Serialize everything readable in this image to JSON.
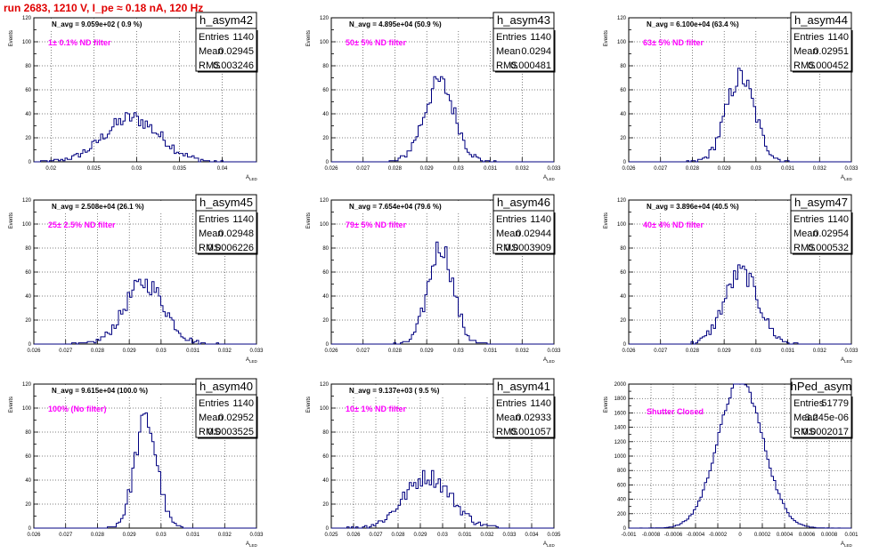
{
  "run_title": "run 2683,  1210 V, I_pe ≈ 0.18 nA, 120 Hz",
  "chart_data": [
    {
      "type": "bar",
      "id": "h_asym42",
      "stats": {
        "title": "h_asym42",
        "entries": "1140",
        "mean": "0.02945",
        "rms": "0.003246"
      },
      "navg": "N_avg = 9.059e+02 ( 0.9 %)",
      "filter": "1± 0.1% ND filter",
      "ylabel": "Events",
      "xlabel": "A_{LED}",
      "xlim": [
        0.018,
        0.044
      ],
      "ylim": [
        0,
        120
      ],
      "xticks": [
        0.02,
        0.025,
        0.03,
        0.035,
        0.04
      ],
      "xtick_labels": [
        "0.02",
        "0.025",
        "0.03",
        "0.035",
        "0.04"
      ],
      "yticks": [
        0,
        10,
        20,
        30,
        40,
        50,
        60,
        70,
        80,
        90,
        100,
        110,
        120
      ],
      "ytick_labels": [
        "0",
        "",
        "20",
        "",
        "40",
        "",
        "60",
        "",
        "80",
        "",
        "100",
        "",
        "120"
      ],
      "mean_val": 0.02945,
      "sigma": 0.003246,
      "entries": 1140,
      "nbins": 100
    },
    {
      "type": "bar",
      "id": "h_asym43",
      "stats": {
        "title": "h_asym43",
        "entries": "1140",
        "mean": "0.0294",
        "rms": "0.000481"
      },
      "navg": "N_avg = 4.895e+04 (50.9 %)",
      "filter": "50± 5% ND filter",
      "ylabel": "Events",
      "xlabel": "A_{LED}",
      "xlim": [
        0.026,
        0.033
      ],
      "ylim": [
        0,
        120
      ],
      "xticks": [
        0.026,
        0.027,
        0.028,
        0.029,
        0.03,
        0.031,
        0.032,
        0.033
      ],
      "xtick_labels": [
        "0.026",
        "0.027",
        "0.028",
        "0.029",
        "0.03",
        "0.031",
        "0.032",
        "0.033"
      ],
      "yticks": [
        0,
        10,
        20,
        30,
        40,
        50,
        60,
        70,
        80,
        90,
        100,
        110,
        120
      ],
      "ytick_labels": [
        "0",
        "",
        "20",
        "",
        "40",
        "",
        "60",
        "",
        "80",
        "",
        "100",
        "",
        "120"
      ],
      "mean_val": 0.0294,
      "sigma": 0.000481,
      "entries": 1140,
      "nbins": 100
    },
    {
      "type": "bar",
      "id": "h_asym44",
      "stats": {
        "title": "h_asym44",
        "entries": "1140",
        "mean": "0.02951",
        "rms": "0.000452"
      },
      "navg": "N_avg = 6.100e+04 (63.4 %)",
      "filter": "63± 5% ND filter",
      "ylabel": "Events",
      "xlabel": "A_{LED}",
      "xlim": [
        0.026,
        0.033
      ],
      "ylim": [
        0,
        120
      ],
      "xticks": [
        0.026,
        0.027,
        0.028,
        0.029,
        0.03,
        0.031,
        0.032,
        0.033
      ],
      "xtick_labels": [
        "0.026",
        "0.027",
        "0.028",
        "0.029",
        "0.03",
        "0.031",
        "0.032",
        "0.033"
      ],
      "yticks": [
        0,
        10,
        20,
        30,
        40,
        50,
        60,
        70,
        80,
        90,
        100,
        110,
        120
      ],
      "ytick_labels": [
        "0",
        "",
        "20",
        "",
        "40",
        "",
        "60",
        "",
        "80",
        "",
        "100",
        "",
        "120"
      ],
      "mean_val": 0.02951,
      "sigma": 0.000452,
      "entries": 1140,
      "nbins": 100
    },
    {
      "type": "bar",
      "id": "h_asym45",
      "stats": {
        "title": "h_asym45",
        "entries": "1140",
        "mean": "0.02948",
        "rms": "0.0006226"
      },
      "navg": "N_avg = 2.508e+04 (26.1 %)",
      "filter": "25± 2.5% ND filter",
      "ylabel": "Events",
      "xlabel": "A_{LED}",
      "xlim": [
        0.026,
        0.033
      ],
      "ylim": [
        0,
        120
      ],
      "xticks": [
        0.026,
        0.027,
        0.028,
        0.029,
        0.03,
        0.031,
        0.032,
        0.033
      ],
      "xtick_labels": [
        "0.026",
        "0.027",
        "0.028",
        "0.029",
        "0.03",
        "0.031",
        "0.032",
        "0.033"
      ],
      "yticks": [
        0,
        10,
        20,
        30,
        40,
        50,
        60,
        70,
        80,
        90,
        100,
        110,
        120
      ],
      "ytick_labels": [
        "0",
        "",
        "20",
        "",
        "40",
        "",
        "60",
        "",
        "80",
        "",
        "100",
        "",
        "120"
      ],
      "mean_val": 0.02948,
      "sigma": 0.0006226,
      "entries": 1140,
      "nbins": 100
    },
    {
      "type": "bar",
      "id": "h_asym46",
      "stats": {
        "title": "h_asym46",
        "entries": "1140",
        "mean": "0.02944",
        "rms": "0.0003909"
      },
      "navg": "N_avg = 7.654e+04 (79.6 %)",
      "filter": "79± 5% ND filter",
      "ylabel": "Events",
      "xlabel": "A_{LED}",
      "xlim": [
        0.026,
        0.033
      ],
      "ylim": [
        0,
        120
      ],
      "xticks": [
        0.026,
        0.027,
        0.028,
        0.029,
        0.03,
        0.031,
        0.032,
        0.033
      ],
      "xtick_labels": [
        "0.026",
        "0.027",
        "0.028",
        "0.029",
        "0.03",
        "0.031",
        "0.032",
        "0.033"
      ],
      "yticks": [
        0,
        10,
        20,
        30,
        40,
        50,
        60,
        70,
        80,
        90,
        100,
        110,
        120
      ],
      "ytick_labels": [
        "0",
        "",
        "20",
        "",
        "40",
        "",
        "60",
        "",
        "80",
        "",
        "100",
        "",
        "120"
      ],
      "mean_val": 0.02944,
      "sigma": 0.0003909,
      "entries": 1140,
      "nbins": 100
    },
    {
      "type": "bar",
      "id": "h_asym47",
      "stats": {
        "title": "h_asym47",
        "entries": "1140",
        "mean": "0.02954",
        "rms": "0.000532"
      },
      "navg": "N_avg = 3.896e+04 (40.5 %)",
      "filter": "40± 4% ND filter",
      "ylabel": "Events",
      "xlabel": "A_{LED}",
      "xlim": [
        0.026,
        0.033
      ],
      "ylim": [
        0,
        120
      ],
      "xticks": [
        0.026,
        0.027,
        0.028,
        0.029,
        0.03,
        0.031,
        0.032,
        0.033
      ],
      "xtick_labels": [
        "0.026",
        "0.027",
        "0.028",
        "0.029",
        "0.03",
        "0.031",
        "0.032",
        "0.033"
      ],
      "yticks": [
        0,
        10,
        20,
        30,
        40,
        50,
        60,
        70,
        80,
        90,
        100,
        110,
        120
      ],
      "ytick_labels": [
        "0",
        "",
        "20",
        "",
        "40",
        "",
        "60",
        "",
        "80",
        "",
        "100",
        "",
        "120"
      ],
      "mean_val": 0.02954,
      "sigma": 0.000532,
      "entries": 1140,
      "nbins": 100
    },
    {
      "type": "bar",
      "id": "h_asym40",
      "stats": {
        "title": "h_asym40",
        "entries": "1140",
        "mean": "0.02952",
        "rms": "0.0003525"
      },
      "navg": "N_avg = 9.615e+04 (100.0 %)",
      "filter": "100% (No filter)",
      "ylabel": "Events",
      "xlabel": "A_{LED}",
      "xlim": [
        0.026,
        0.033
      ],
      "ylim": [
        0,
        120
      ],
      "xticks": [
        0.026,
        0.027,
        0.028,
        0.029,
        0.03,
        0.031,
        0.032,
        0.033
      ],
      "xtick_labels": [
        "0.026",
        "0.027",
        "0.028",
        "0.029",
        "0.03",
        "0.031",
        "0.032",
        "0.033"
      ],
      "yticks": [
        0,
        10,
        20,
        30,
        40,
        50,
        60,
        70,
        80,
        90,
        100,
        110,
        120
      ],
      "ytick_labels": [
        "0",
        "",
        "20",
        "",
        "40",
        "",
        "60",
        "",
        "80",
        "",
        "100",
        "",
        "120"
      ],
      "mean_val": 0.02952,
      "sigma": 0.0003525,
      "entries": 1140,
      "nbins": 100
    },
    {
      "type": "bar",
      "id": "h_asym41",
      "stats": {
        "title": "h_asym41",
        "entries": "1140",
        "mean": "0.02933",
        "rms": "0.001057"
      },
      "navg": "N_avg = 9.137e+03 ( 9.5 %)",
      "filter": "10± 1% ND filter",
      "ylabel": "Events",
      "xlabel": "A_{LED}",
      "xlim": [
        0.025,
        0.035
      ],
      "ylim": [
        0,
        120
      ],
      "xticks": [
        0.025,
        0.026,
        0.027,
        0.028,
        0.029,
        0.03,
        0.031,
        0.032,
        0.033,
        0.034,
        0.035
      ],
      "xtick_labels": [
        "0.025",
        "0.026",
        "0.027",
        "0.028",
        "0.029",
        "0.03",
        "0.031",
        "0.032",
        "0.033",
        "0.034",
        "0.035"
      ],
      "yticks": [
        0,
        10,
        20,
        30,
        40,
        50,
        60,
        70,
        80,
        90,
        100,
        110,
        120
      ],
      "ytick_labels": [
        "0",
        "",
        "20",
        "",
        "40",
        "",
        "60",
        "",
        "80",
        "",
        "100",
        "",
        "120"
      ],
      "mean_val": 0.02933,
      "sigma": 0.001057,
      "entries": 1140,
      "nbins": 100
    },
    {
      "type": "bar",
      "id": "hPed_asym",
      "stats": {
        "title": "hPed_asym",
        "entries": "51779",
        "mean": "3.245e-06",
        "rms": "0.0002017"
      },
      "navg": "",
      "filter": "Shutter Closed",
      "ylabel": "Events",
      "xlabel": "A_{LED}",
      "xlim": [
        -0.001,
        0.001
      ],
      "ylim": [
        0,
        2000
      ],
      "xticks": [
        -0.001,
        -0.0008,
        -0.0006,
        -0.0004,
        -0.0002,
        0,
        0.0002,
        0.0004,
        0.0006,
        0.0008,
        0.001
      ],
      "xtick_labels": [
        "-0.001",
        "-0.0008",
        "-0.0006",
        "-0.0004",
        "-0.0002",
        "0",
        "0.0002",
        "0.0004",
        "0.0006",
        "0.0008",
        "0.001"
      ],
      "yticks": [
        0,
        100,
        200,
        300,
        400,
        500,
        600,
        700,
        800,
        900,
        1000,
        1100,
        1200,
        1300,
        1400,
        1500,
        1600,
        1700,
        1800,
        1900,
        2000
      ],
      "ytick_labels": [
        "0",
        "",
        "200",
        "",
        "400",
        "",
        "600",
        "",
        "800",
        "",
        "1000",
        "",
        "1200",
        "",
        "1400",
        "",
        "1600",
        "",
        "1800",
        "",
        "2000"
      ],
      "mean_val": 3.25e-06,
      "sigma": 0.0002017,
      "entries": 51779,
      "nbins": 100
    }
  ]
}
